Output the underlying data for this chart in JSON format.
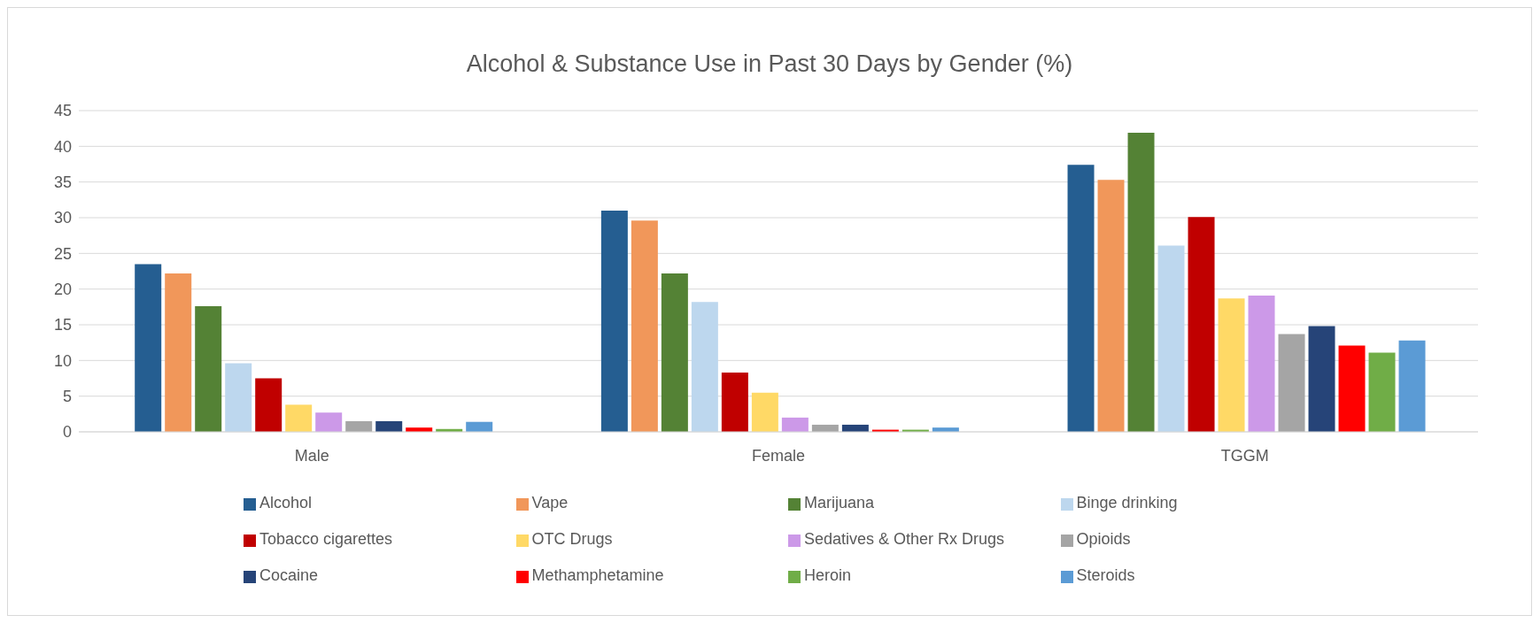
{
  "chart_data": {
    "type": "bar",
    "title": "Alcohol & Substance Use in Past 30 Days by Gender (%)",
    "categories": [
      "Male",
      "Female",
      "TGGM"
    ],
    "series": [
      {
        "name": "Alcohol",
        "color": "#255e91",
        "values": [
          23.5,
          31.0,
          37.4
        ]
      },
      {
        "name": "Vape",
        "color": "#f1975a",
        "values": [
          22.2,
          29.6,
          35.3
        ]
      },
      {
        "name": "Marijuana",
        "color": "#548235",
        "values": [
          17.6,
          22.2,
          41.9
        ]
      },
      {
        "name": "Binge drinking",
        "color": "#bdd7ee",
        "values": [
          9.6,
          18.2,
          26.1
        ]
      },
      {
        "name": "Tobacco cigarettes",
        "color": "#c00000",
        "values": [
          7.5,
          8.3,
          30.1
        ]
      },
      {
        "name": "OTC Drugs",
        "color": "#ffd966",
        "values": [
          3.8,
          5.5,
          18.7
        ]
      },
      {
        "name": "Sedatives & Other Rx Drugs",
        "color": "#cc99e8",
        "values": [
          2.7,
          2.0,
          19.1
        ]
      },
      {
        "name": "Opioids",
        "color": "#a5a5a5",
        "values": [
          1.5,
          1.0,
          13.7
        ]
      },
      {
        "name": "Cocaine",
        "color": "#264478",
        "values": [
          1.5,
          1.0,
          14.8
        ]
      },
      {
        "name": "Methamphetamine",
        "color": "#ff0000",
        "values": [
          0.6,
          0.3,
          12.1
        ]
      },
      {
        "name": "Heroin",
        "color": "#70ad47",
        "values": [
          0.4,
          0.3,
          11.1
        ]
      },
      {
        "name": "Steroids",
        "color": "#5b9bd5",
        "values": [
          1.4,
          0.6,
          12.8
        ]
      }
    ],
    "ylim": [
      0,
      45
    ],
    "yticks": [
      0,
      5,
      10,
      15,
      20,
      25,
      30,
      35,
      40,
      45
    ],
    "grid": "y",
    "legend": "bottom"
  }
}
